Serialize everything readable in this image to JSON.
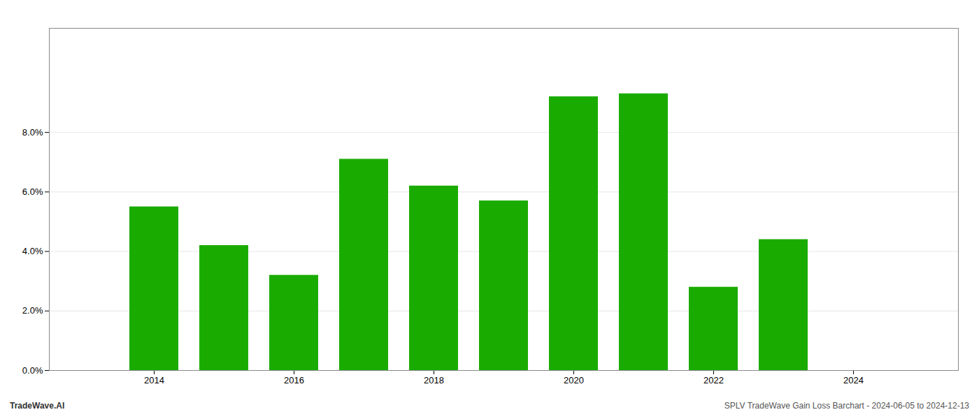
{
  "chart_data": {
    "type": "bar",
    "x": [
      2014,
      2015,
      2016,
      2017,
      2018,
      2019,
      2020,
      2021,
      2022,
      2023,
      2024
    ],
    "values": [
      0.055,
      0.042,
      0.032,
      0.071,
      0.062,
      0.057,
      0.092,
      0.093,
      0.028,
      0.044,
      0.0
    ],
    "color": "#1aab00",
    "xlim": [
      2012.5,
      2025.5
    ],
    "xticks": [
      2014,
      2016,
      2018,
      2020,
      2022,
      2024
    ],
    "ylim": [
      0,
      0.115
    ],
    "yticks": [
      {
        "value": 0.0,
        "label": "0.0%"
      },
      {
        "value": 0.02,
        "label": "2.0%"
      },
      {
        "value": 0.04,
        "label": "4.0%"
      },
      {
        "value": 0.06,
        "label": "6.0%"
      },
      {
        "value": 0.08,
        "label": "8.0%"
      }
    ],
    "grid": true,
    "annotations": [
      "TradeWave.AI",
      "SPLV TradeWave Gain Loss Barchart - 2024-06-05 to 2024-12-13"
    ]
  }
}
